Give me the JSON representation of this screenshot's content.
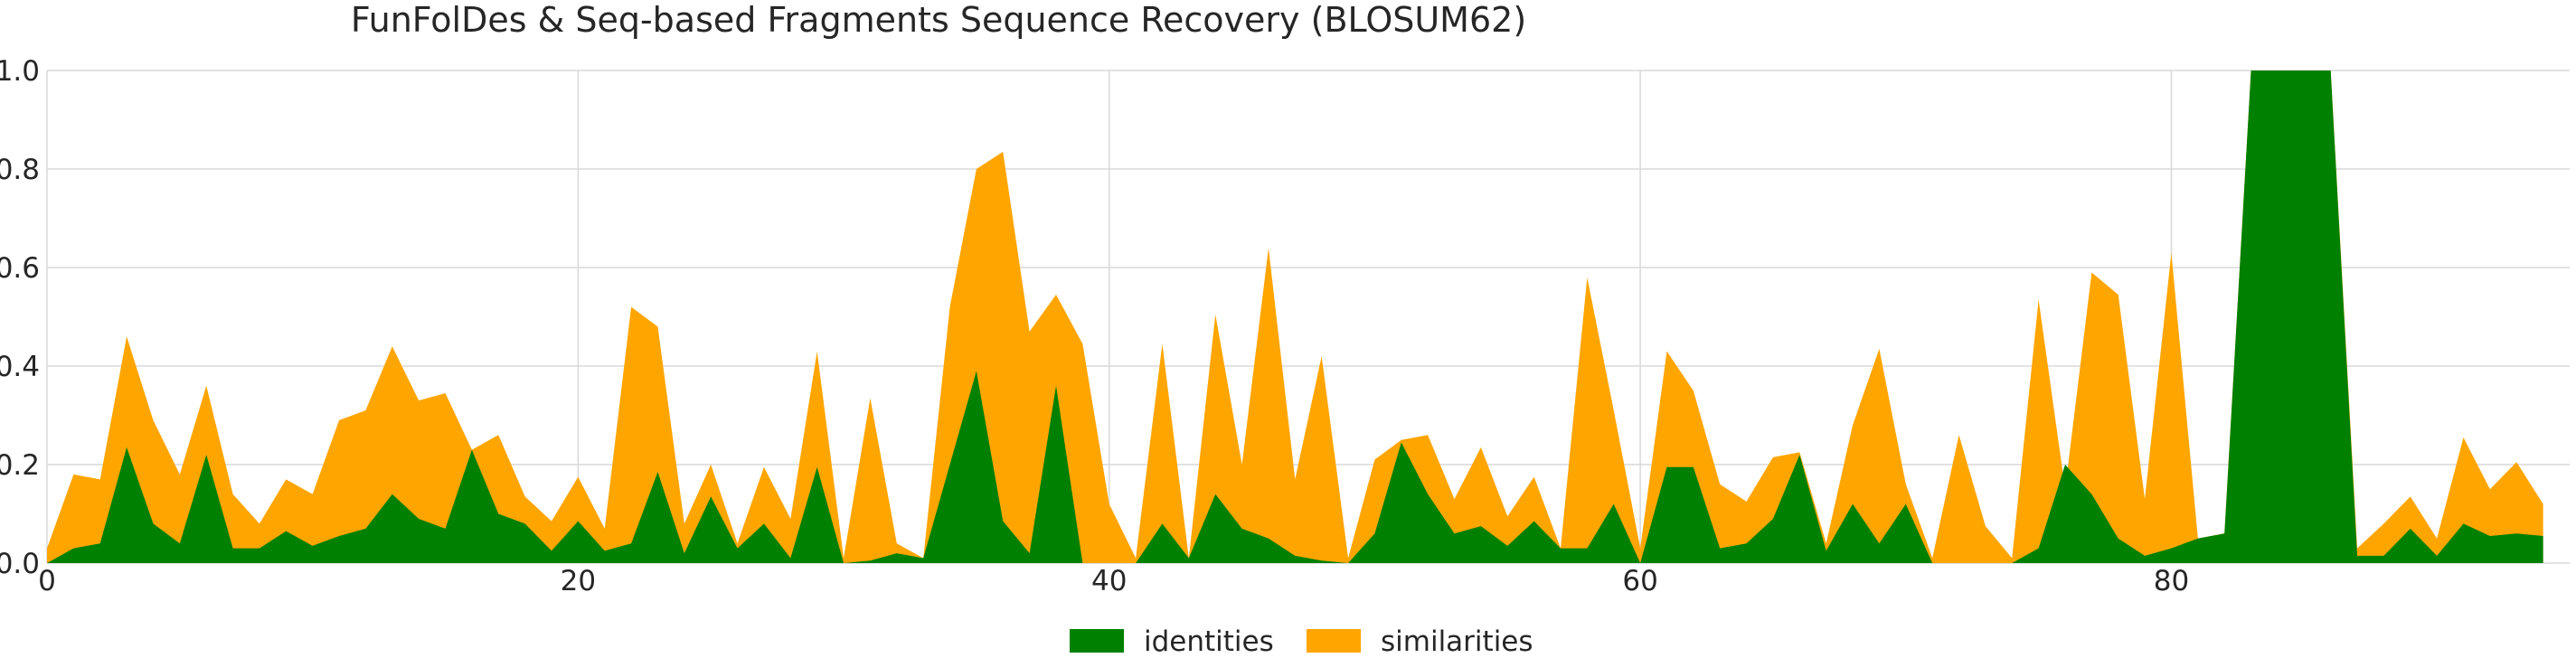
{
  "chart_data": {
    "type": "area",
    "title": "FunFolDes & Seq-based Fragments Sequence Recovery (BLOSUM62)",
    "xlabel": "",
    "ylabel": "",
    "xlim": [
      0,
      95
    ],
    "ylim": [
      0,
      1.0
    ],
    "x_ticks": [
      0,
      20,
      40,
      60,
      80
    ],
    "y_ticks": [
      0.0,
      0.2,
      0.4,
      0.6,
      0.8,
      1.0
    ],
    "y_tick_labels": [
      "0.0",
      "0.2",
      "0.4",
      "0.6",
      "0.8",
      "1.0"
    ],
    "grid": true,
    "legend_position": "bottom-center",
    "stacked": false,
    "series": [
      {
        "name": "similarities",
        "color": "#ffa500",
        "values": [
          0.03,
          0.18,
          0.17,
          0.46,
          0.29,
          0.18,
          0.36,
          0.14,
          0.08,
          0.17,
          0.14,
          0.29,
          0.31,
          0.44,
          0.33,
          0.345,
          0.23,
          0.26,
          0.135,
          0.085,
          0.175,
          0.07,
          0.52,
          0.48,
          0.08,
          0.2,
          0.04,
          0.195,
          0.09,
          0.43,
          0.01,
          0.335,
          0.04,
          0.01,
          0.52,
          0.8,
          0.835,
          0.47,
          0.545,
          0.445,
          0.12,
          0.01,
          0.445,
          0.01,
          0.505,
          0.2,
          0.64,
          0.17,
          0.42,
          0.01,
          0.21,
          0.25,
          0.26,
          0.13,
          0.235,
          0.095,
          0.175,
          0.03,
          0.58,
          0.31,
          0.03,
          0.43,
          0.35,
          0.16,
          0.125,
          0.215,
          0.225,
          0.04,
          0.28,
          0.435,
          0.16,
          0.01,
          0.26,
          0.075,
          0.01,
          0.535,
          0.15,
          0.59,
          0.545,
          0.13,
          0.63,
          0.05,
          0.06,
          1.0,
          1.0,
          1.0,
          1.0,
          0.03,
          0.08,
          0.135,
          0.05,
          0.255,
          0.15,
          0.205,
          0.12
        ]
      },
      {
        "name": "identities",
        "color": "#008000",
        "values": [
          0.0,
          0.03,
          0.04,
          0.235,
          0.08,
          0.04,
          0.22,
          0.03,
          0.03,
          0.065,
          0.035,
          0.055,
          0.07,
          0.14,
          0.09,
          0.07,
          0.23,
          0.1,
          0.08,
          0.025,
          0.085,
          0.025,
          0.04,
          0.185,
          0.02,
          0.135,
          0.03,
          0.08,
          0.01,
          0.195,
          0.0,
          0.005,
          0.02,
          0.01,
          0.2,
          0.39,
          0.085,
          0.02,
          0.36,
          0.0,
          0.0,
          0.0,
          0.08,
          0.01,
          0.14,
          0.07,
          0.05,
          0.015,
          0.005,
          0.0,
          0.06,
          0.245,
          0.14,
          0.06,
          0.075,
          0.035,
          0.085,
          0.03,
          0.03,
          0.12,
          0.0,
          0.195,
          0.195,
          0.03,
          0.04,
          0.09,
          0.22,
          0.025,
          0.12,
          0.04,
          0.12,
          0.0,
          0.0,
          0.0,
          0.0,
          0.03,
          0.2,
          0.14,
          0.05,
          0.015,
          0.03,
          0.05,
          0.06,
          1.0,
          1.0,
          1.0,
          1.0,
          0.015,
          0.015,
          0.07,
          0.015,
          0.08,
          0.055,
          0.06,
          0.055
        ]
      }
    ],
    "legend": [
      {
        "label": "identities",
        "color": "#008000"
      },
      {
        "label": "similarities",
        "color": "#ffa500"
      }
    ]
  }
}
